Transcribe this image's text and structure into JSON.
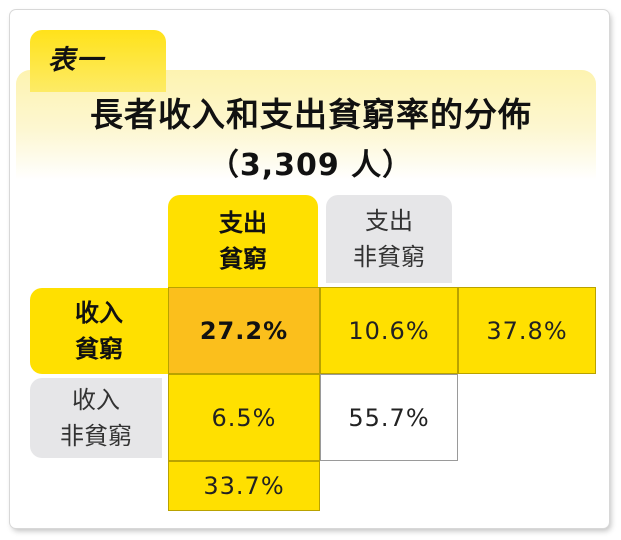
{
  "table_label": "表一",
  "title": "長者收入和支出貧窮率的分佈",
  "sample": "（3,309 人）",
  "columns": [
    {
      "line1": "支出",
      "line2": "貧窮"
    },
    {
      "line1": "支出",
      "line2": "非貧窮"
    }
  ],
  "rows": [
    {
      "line1": "收入",
      "line2": "貧窮"
    },
    {
      "line1": "收入",
      "line2": "非貧窮"
    }
  ],
  "colors": {
    "highlight_yellow": "#ffe000",
    "overlap_orange": "#fbbf1c",
    "neutral_grey": "#e6e6e8"
  },
  "chart_data": {
    "type": "table",
    "columns": [
      "支出 貧窮",
      "支出 非貧窮"
    ],
    "rows": [
      "收入 貧窮",
      "收入 非貧窮"
    ],
    "cells": [
      [
        "27.2%",
        "10.6%"
      ],
      [
        "6.5%",
        "55.7%"
      ]
    ],
    "row_totals": [
      "37.8%"
    ],
    "column_totals": [
      "33.7%"
    ],
    "values": [
      [
        27.2,
        10.6
      ],
      [
        6.5,
        55.7
      ]
    ],
    "income_poverty_total": 37.8,
    "expenditure_poverty_total": 33.7
  }
}
